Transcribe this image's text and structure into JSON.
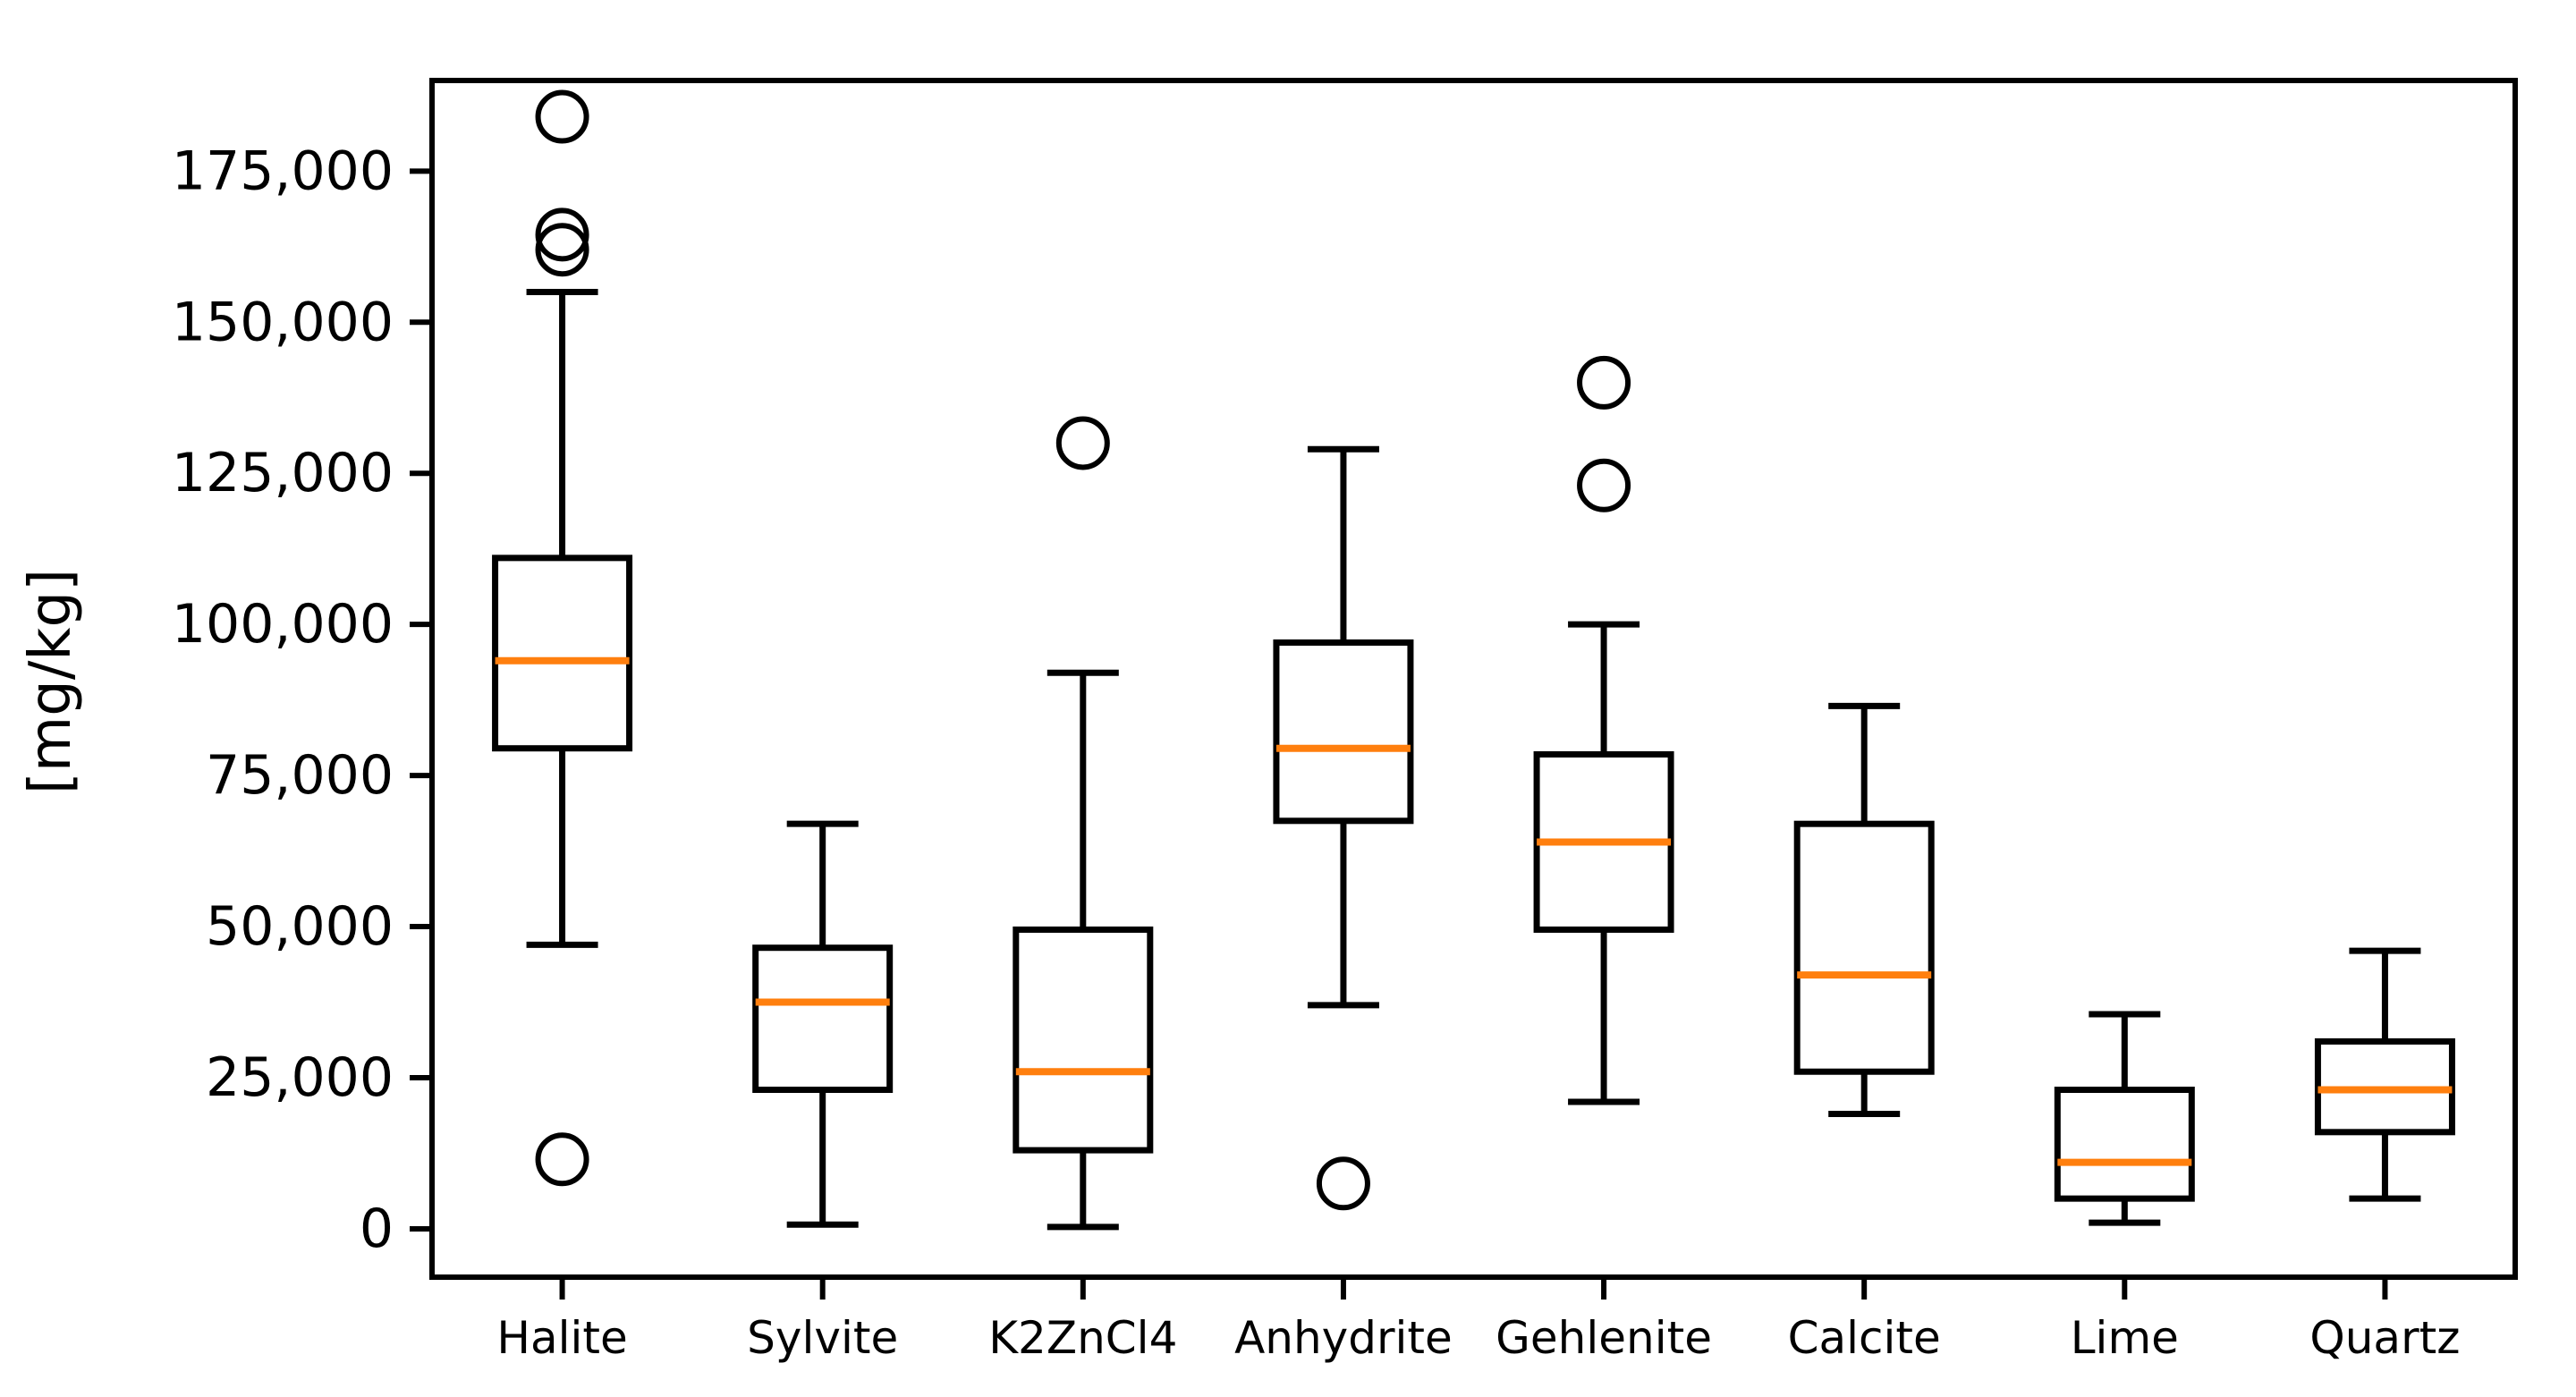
{
  "chart_data": {
    "type": "boxplot",
    "title": "",
    "xlabel": "",
    "ylabel": "[mg/kg]",
    "grid": false,
    "legend": "none",
    "background_color": "#ffffff",
    "box_color": "#000000",
    "median_color": "#ff7f0e",
    "ylim": [
      -8000,
      190000
    ],
    "y_ticks": [
      0,
      25000,
      50000,
      75000,
      100000,
      125000,
      150000,
      175000
    ],
    "y_tick_labels": [
      "0",
      "25,000",
      "50,000",
      "75,000",
      "100,000",
      "125,000",
      "150,000",
      "175,000"
    ],
    "categories": [
      "Halite",
      "Sylvite",
      "K2ZnCl4",
      "Anhydrite",
      "Gehlenite",
      "Calcite",
      "Lime",
      "Quartz"
    ],
    "series": [
      {
        "name": "Halite",
        "whisker_low": 47000,
        "q1": 79500,
        "median": 94000,
        "q3": 111000,
        "whisker_high": 155000,
        "outliers": [
          184000,
          164500,
          162000,
          11500
        ]
      },
      {
        "name": "Sylvite",
        "whisker_low": 700,
        "q1": 23000,
        "median": 37500,
        "q3": 46500,
        "whisker_high": 67000,
        "outliers": []
      },
      {
        "name": "K2ZnCl4",
        "whisker_low": 300,
        "q1": 13000,
        "median": 26000,
        "q3": 49500,
        "whisker_high": 92000,
        "outliers": [
          130000
        ]
      },
      {
        "name": "Anhydrite",
        "whisker_low": 37000,
        "q1": 67500,
        "median": 79500,
        "q3": 97000,
        "whisker_high": 129000,
        "outliers": [
          7500
        ]
      },
      {
        "name": "Gehlenite",
        "whisker_low": 21000,
        "q1": 49500,
        "median": 64000,
        "q3": 78500,
        "whisker_high": 100000,
        "outliers": [
          140000,
          123000
        ]
      },
      {
        "name": "Calcite",
        "whisker_low": 19000,
        "q1": 26000,
        "median": 42000,
        "q3": 67000,
        "whisker_high": 86500,
        "outliers": []
      },
      {
        "name": "Lime",
        "whisker_low": 1000,
        "q1": 5000,
        "median": 11000,
        "q3": 23000,
        "whisker_high": 35500,
        "outliers": []
      },
      {
        "name": "Quartz",
        "whisker_low": 5000,
        "q1": 16000,
        "median": 23000,
        "q3": 31000,
        "whisker_high": 46000,
        "outliers": []
      }
    ]
  }
}
